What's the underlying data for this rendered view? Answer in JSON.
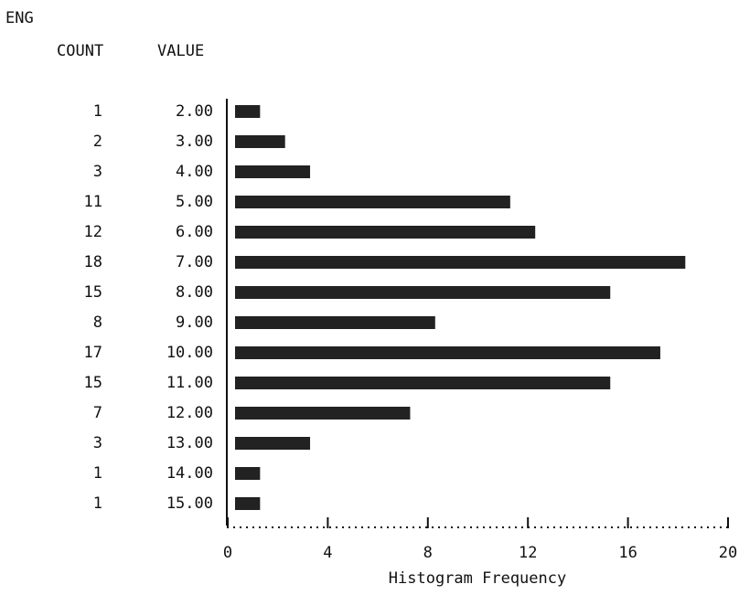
{
  "header": "ENG",
  "chart_data": {
    "type": "bar",
    "orientation": "horizontal",
    "count_label": "COUNT",
    "value_label": "VALUE",
    "categories": [
      "2.00",
      "3.00",
      "4.00",
      "5.00",
      "6.00",
      "7.00",
      "8.00",
      "9.00",
      "10.00",
      "11.00",
      "12.00",
      "13.00",
      "14.00",
      "15.00"
    ],
    "values": [
      1,
      2,
      3,
      11,
      12,
      18,
      15,
      8,
      17,
      15,
      7,
      3,
      1,
      1
    ],
    "xlabel": "Histogram Frequency",
    "xlim": [
      0,
      20
    ],
    "xticks": [
      0,
      4,
      8,
      12,
      16,
      20
    ],
    "color": "#222222"
  }
}
